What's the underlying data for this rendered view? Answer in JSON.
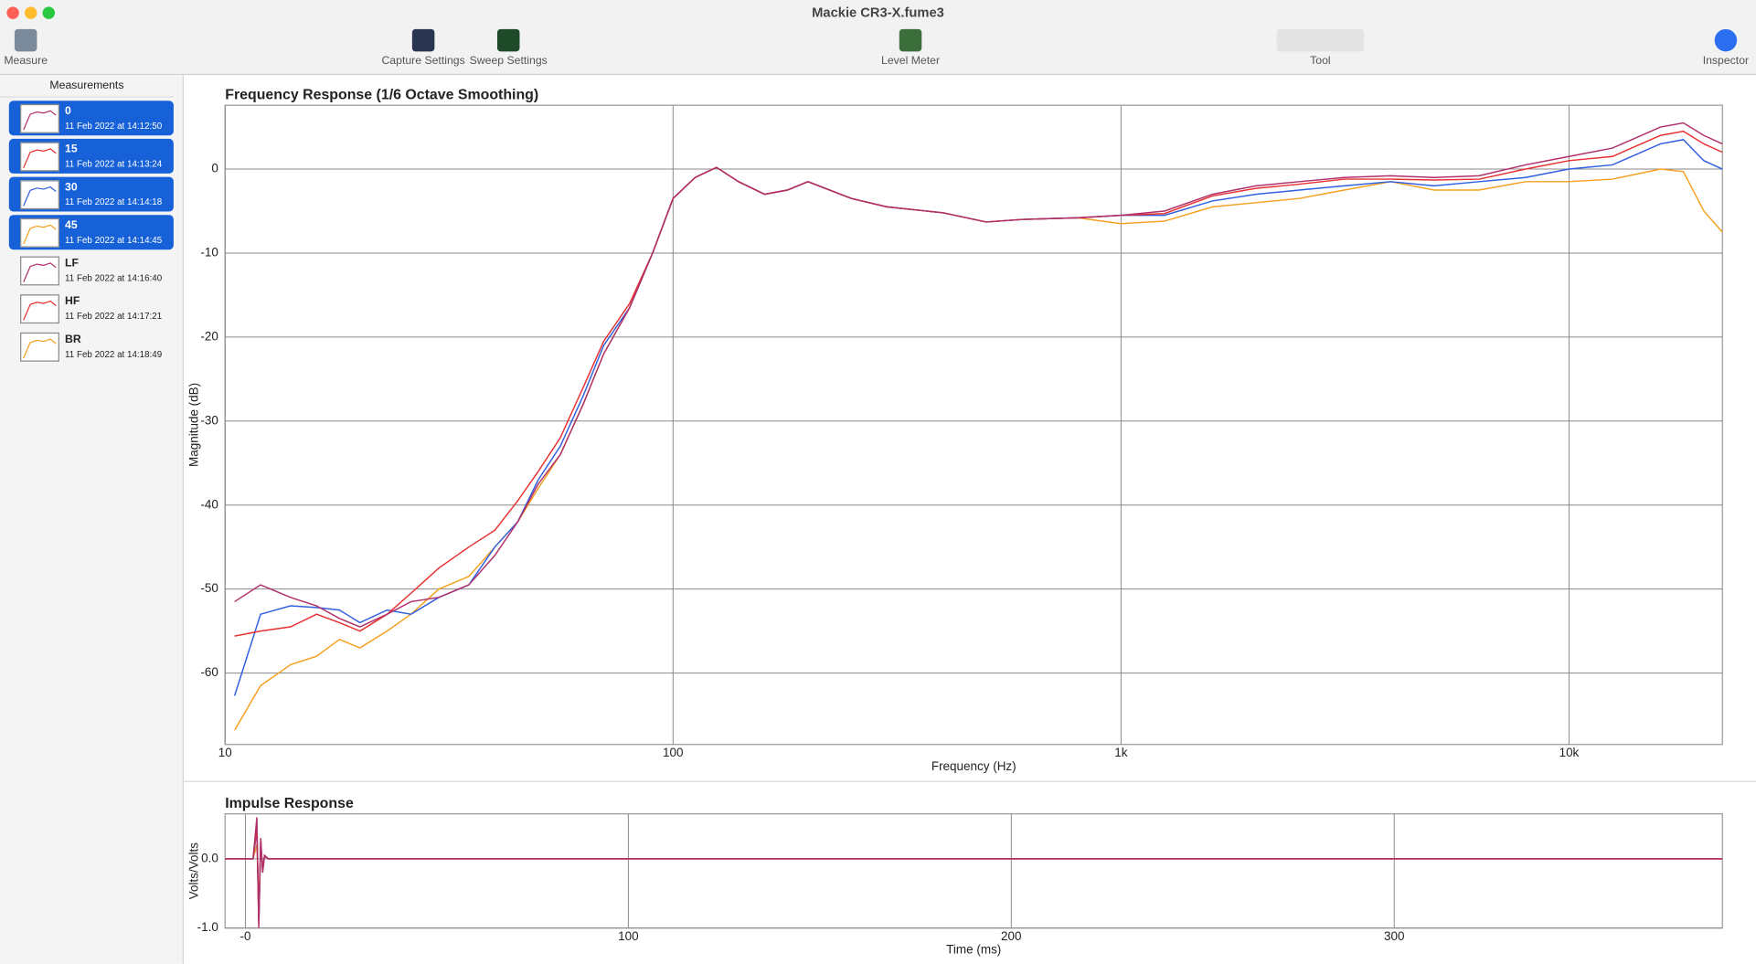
{
  "window": {
    "title": "Mackie CR3-X.fume3"
  },
  "toolbar": {
    "measure": "Measure",
    "capture_settings": "Capture Settings",
    "sweep_settings": "Sweep Settings",
    "level_meter": "Level Meter",
    "tool": "Tool",
    "inspector": "Inspector"
  },
  "sidebar": {
    "header": "Measurements",
    "items": [
      {
        "name": "0",
        "date": "11 Feb 2022 at 14:12:50"
      },
      {
        "name": "15",
        "date": "11 Feb 2022 at 14:13:24"
      },
      {
        "name": "30",
        "date": "11 Feb 2022 at 14:14:18"
      },
      {
        "name": "45",
        "date": "11 Feb 2022 at 14:14:45"
      },
      {
        "name": "LF",
        "date": "11 Feb 2022 at 14:16:40"
      },
      {
        "name": "HF",
        "date": "11 Feb 2022 at 14:17:21"
      },
      {
        "name": "BR",
        "date": "11 Feb 2022 at 14:18:49"
      }
    ]
  },
  "chart_data": [
    {
      "type": "line",
      "title": "Frequency Response (1/6 Octave Smoothing)",
      "x_label": "Frequency (Hz)",
      "y_label": "Magnitude (dB)",
      "xlog": true,
      "grid": true,
      "xlim": [
        10,
        22000
      ],
      "ylim": [
        -68.5,
        7.6
      ],
      "xticks": [
        10,
        100,
        {
          "value": 1000,
          "label": "1k"
        },
        {
          "value": 10000,
          "label": "10k"
        }
      ],
      "yticks": [
        0,
        -10,
        -20,
        -30,
        -40,
        -50,
        -60
      ],
      "x": [
        10.5,
        12,
        14,
        16,
        18,
        20,
        23,
        26,
        30,
        35,
        40,
        45,
        50,
        56,
        63,
        70,
        80,
        90,
        100,
        112,
        125,
        140,
        160,
        180,
        200,
        250,
        300,
        400,
        500,
        600,
        800,
        1000,
        1250,
        1600,
        2000,
        2500,
        3150,
        4000,
        5000,
        6300,
        8000,
        10000,
        12500,
        16000,
        18000,
        20000,
        22000
      ],
      "series": [
        {
          "name": "45",
          "color": "#f5a020",
          "values": [
            -66.8,
            -61.5,
            -59,
            -58,
            -56,
            -57,
            -55,
            -53,
            -50,
            -48.5,
            -45,
            -42,
            -38,
            -34,
            -28,
            -22,
            -16.5,
            -10,
            -3.5,
            -1,
            0.2,
            -1.5,
            -3,
            -2.5,
            -1.5,
            -3.5,
            -4.5,
            -5.2,
            -6.3,
            -6,
            -5.8,
            -6.5,
            -6.2,
            -4.5,
            -4,
            -3.5,
            -2.5,
            -1.5,
            -2.5,
            -2.5,
            -1.5,
            -1.5,
            -1.2,
            0,
            -0.3,
            -5,
            -7.5
          ]
        },
        {
          "name": "30",
          "color": "#3060e0",
          "values": [
            -62.7,
            -53,
            -52,
            -52.2,
            -52.5,
            -54,
            -52.5,
            -53,
            -51,
            -49.5,
            -45,
            -42,
            -37,
            -33,
            -27,
            -21,
            -16.5,
            -10,
            -3.5,
            -1,
            0.2,
            -1.5,
            -3,
            -2.5,
            -1.5,
            -3.5,
            -4.5,
            -5.2,
            -6.3,
            -6,
            -5.8,
            -5.5,
            -5.5,
            -3.8,
            -3,
            -2.5,
            -2,
            -1.5,
            -2,
            -1.5,
            -1,
            0,
            0.5,
            3,
            3.5,
            1,
            0
          ]
        },
        {
          "name": "15",
          "color": "#e83030",
          "values": [
            -55.6,
            -55,
            -54.5,
            -53,
            -54,
            -55,
            -53,
            -50.5,
            -47.5,
            -45,
            -43,
            -39.5,
            -36,
            -32,
            -26,
            -20.5,
            -16,
            -10,
            -3.5,
            -1,
            0.2,
            -1.5,
            -3,
            -2.5,
            -1.5,
            -3.5,
            -4.5,
            -5.2,
            -6.3,
            -6,
            -5.8,
            -5.5,
            -5.3,
            -3.2,
            -2.3,
            -1.8,
            -1.2,
            -1.2,
            -1.3,
            -1.2,
            0,
            1,
            1.5,
            4,
            4.5,
            3,
            2
          ]
        },
        {
          "name": "0",
          "color": "#b0306a",
          "values": [
            -51.5,
            -49.5,
            -51,
            -52,
            -53.5,
            -54.5,
            -53,
            -51.5,
            -51,
            -49.5,
            -46,
            -42,
            -37.5,
            -34,
            -28,
            -22,
            -16.5,
            -10,
            -3.5,
            -1,
            0.2,
            -1.5,
            -3,
            -2.5,
            -1.5,
            -3.5,
            -4.5,
            -5.2,
            -6.3,
            -6,
            -5.8,
            -5.5,
            -5,
            -3,
            -2,
            -1.5,
            -1,
            -0.8,
            -1,
            -0.8,
            0.5,
            1.5,
            2.5,
            5,
            5.5,
            4,
            3
          ]
        }
      ]
    },
    {
      "type": "line",
      "title": "Impulse Response",
      "x_label": "Time (ms)",
      "y_label": "Volts/Volts",
      "grid": true,
      "xlim": [
        -5.3,
        385.7
      ],
      "ylim": [
        -1.0,
        0.65
      ],
      "xticks": [
        {
          "value": 0,
          "label": "-0"
        },
        100,
        200,
        300
      ],
      "yticks": [
        {
          "value": 0,
          "label": "0.0"
        },
        {
          "value": -1,
          "label": "-1.0"
        }
      ],
      "x": [
        -5.3,
        0,
        2,
        3,
        3.5,
        4,
        4.5,
        5,
        6,
        8,
        20,
        385.7
      ],
      "series": [
        {
          "name": "45",
          "color": "#f5a020",
          "values": [
            0,
            0,
            0,
            0.2,
            -0.6,
            0.15,
            -0.1,
            0.03,
            0,
            0,
            0,
            0
          ]
        },
        {
          "name": "30",
          "color": "#3060e0",
          "values": [
            0,
            0,
            0,
            0.4,
            -0.9,
            0.25,
            -0.15,
            0.04,
            0,
            0,
            0,
            0
          ]
        },
        {
          "name": "15",
          "color": "#e83030",
          "values": [
            0,
            0,
            0,
            0.45,
            -0.95,
            0.28,
            -0.18,
            0.05,
            0,
            0,
            0,
            0
          ]
        },
        {
          "name": "0",
          "color": "#b0306a",
          "values": [
            0,
            0,
            0,
            0.6,
            -1.0,
            0.3,
            -0.2,
            0.05,
            0,
            0,
            0,
            0
          ]
        }
      ]
    }
  ]
}
